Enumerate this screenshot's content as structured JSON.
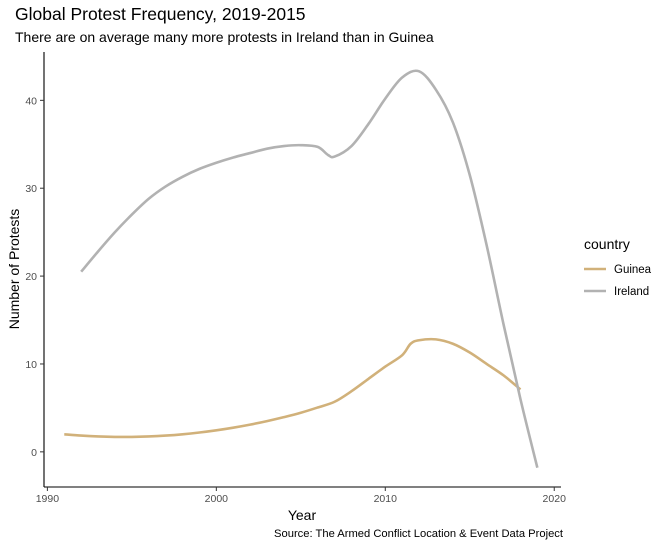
{
  "chart_data": {
    "type": "line",
    "title": "Global Protest Frequency, 2019-2015",
    "subtitle": "There are on average many more protests in Ireland than in Guinea",
    "caption": "Source: The Armed Conflict Location & Event Data Project",
    "xlabel": "Year",
    "ylabel": "Number of Protests",
    "xlim": [
      1989.8,
      2020.4
    ],
    "ylim": [
      -4,
      45.5
    ],
    "x_ticks": [
      1990,
      2000,
      2010,
      2020
    ],
    "y_ticks": [
      0,
      10,
      20,
      30,
      40
    ],
    "grid": false,
    "legend": {
      "title": "country",
      "position": "right"
    },
    "series": [
      {
        "name": "Guinea",
        "color": "#d1b17a",
        "points": [
          [
            1991,
            2.0
          ],
          [
            1992,
            1.85
          ],
          [
            1993,
            1.75
          ],
          [
            1994,
            1.7
          ],
          [
            1995,
            1.7
          ],
          [
            1996,
            1.75
          ],
          [
            1997,
            1.85
          ],
          [
            1998,
            2.0
          ],
          [
            1999,
            2.2
          ],
          [
            2000,
            2.45
          ],
          [
            2001,
            2.75
          ],
          [
            2002,
            3.1
          ],
          [
            2003,
            3.5
          ],
          [
            2004,
            3.95
          ],
          [
            2005,
            4.45
          ],
          [
            2006,
            5.05
          ],
          [
            2007,
            5.7
          ],
          [
            2008,
            6.9
          ],
          [
            2009,
            8.3
          ],
          [
            2010,
            9.7
          ],
          [
            2011,
            11.0
          ],
          [
            2011.5,
            12.3
          ],
          [
            2012,
            12.7
          ],
          [
            2013,
            12.8
          ],
          [
            2014,
            12.3
          ],
          [
            2015,
            11.3
          ],
          [
            2016,
            10.0
          ],
          [
            2017,
            8.7
          ],
          [
            2018,
            7.1
          ]
        ]
      },
      {
        "name": "Ireland",
        "color": "#b2b2b2",
        "points": [
          [
            1992,
            20.5
          ],
          [
            1993,
            22.8
          ],
          [
            1994,
            25.0
          ],
          [
            1995,
            27.0
          ],
          [
            1996,
            28.8
          ],
          [
            1997,
            30.2
          ],
          [
            1998,
            31.3
          ],
          [
            1999,
            32.2
          ],
          [
            2000,
            32.9
          ],
          [
            2001,
            33.5
          ],
          [
            2002,
            34.0
          ],
          [
            2003,
            34.5
          ],
          [
            2004,
            34.8
          ],
          [
            2005,
            34.9
          ],
          [
            2006,
            34.7
          ],
          [
            2006.6,
            33.8
          ],
          [
            2007,
            33.6
          ],
          [
            2008,
            34.8
          ],
          [
            2009,
            37.3
          ],
          [
            2010,
            40.2
          ],
          [
            2011,
            42.6
          ],
          [
            2012,
            43.3
          ],
          [
            2013,
            41.2
          ],
          [
            2014,
            37.5
          ],
          [
            2015,
            31.5
          ],
          [
            2016,
            23.5
          ],
          [
            2017,
            14.5
          ],
          [
            2018,
            6.0
          ],
          [
            2019,
            -1.8
          ]
        ]
      }
    ]
  }
}
